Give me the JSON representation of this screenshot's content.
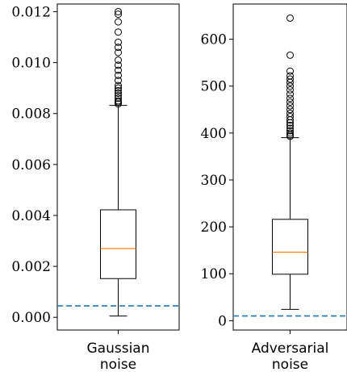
{
  "chart_data": [
    {
      "type": "box",
      "category_label": [
        "Gaussian",
        "noise"
      ],
      "ylim": [
        -0.0005,
        0.0123
      ],
      "yticks": [
        0.0,
        0.002,
        0.004,
        0.006,
        0.008,
        0.01,
        0.012
      ],
      "ytick_labels": [
        "0.000",
        "0.002",
        "0.004",
        "0.006",
        "0.008",
        "0.010",
        "0.012"
      ],
      "box": {
        "whisker_low": 5e-05,
        "q1": 0.00152,
        "median": 0.0027,
        "q3": 0.00422,
        "whisker_high": 0.00832
      },
      "outliers": [
        0.00838,
        0.00845,
        0.0085,
        0.0086,
        0.0087,
        0.0088,
        0.0089,
        0.009,
        0.0091,
        0.0093,
        0.0095,
        0.0097,
        0.0099,
        0.0101,
        0.0104,
        0.0106,
        0.0108,
        0.0112,
        0.0116,
        0.0119,
        0.012
      ],
      "reference_line": 0.00045,
      "colors": {
        "box": "#000000",
        "median": "#ff7f0e",
        "reference_line": "#1f77b4"
      }
    },
    {
      "type": "box",
      "category_label": [
        "Adversarial",
        "noise"
      ],
      "ylim": [
        -20,
        675
      ],
      "yticks": [
        0,
        100,
        200,
        300,
        400,
        500,
        600
      ],
      "ytick_labels": [
        "0",
        "100",
        "200",
        "300",
        "400",
        "500",
        "600"
      ],
      "box": {
        "whisker_low": 24,
        "q1": 99,
        "median": 146,
        "q3": 216,
        "whisker_high": 390
      },
      "outliers": [
        393,
        396,
        400,
        405,
        410,
        416,
        422,
        428,
        435,
        442,
        450,
        458,
        466,
        474,
        483,
        492,
        500,
        508,
        515,
        522,
        532,
        566,
        645
      ],
      "reference_line": 10,
      "colors": {
        "box": "#000000",
        "median": "#ff7f0e",
        "reference_line": "#1f77b4"
      }
    }
  ]
}
